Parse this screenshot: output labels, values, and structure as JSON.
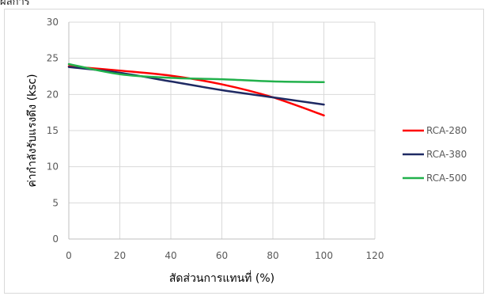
{
  "page": {
    "cropped_text_top": "ผลการ"
  },
  "chart_data": {
    "type": "line",
    "title": "",
    "xlabel": "สัดส่วนการแทนที่ (%)",
    "ylabel": "ค่ากำลังรับแรงดึง (ksc)",
    "xlim": [
      0,
      120
    ],
    "ylim": [
      0,
      30
    ],
    "x_ticks": [
      0,
      20,
      40,
      60,
      80,
      100,
      120
    ],
    "y_ticks": [
      0,
      5,
      10,
      15,
      20,
      25,
      30
    ],
    "grid": true,
    "legend_position": "right",
    "series": [
      {
        "name": "RCA-280",
        "color": "#ff0000",
        "x": [
          0,
          20,
          40,
          60,
          80,
          100
        ],
        "y": [
          23.9,
          23.3,
          22.6,
          21.4,
          19.6,
          17.1
        ]
      },
      {
        "name": "RCA-380",
        "color": "#1f2a63",
        "x": [
          0,
          20,
          40,
          60,
          80,
          100
        ],
        "y": [
          23.8,
          23.0,
          21.8,
          20.6,
          19.6,
          18.6
        ]
      },
      {
        "name": "RCA-500",
        "color": "#22b14c",
        "x": [
          0,
          20,
          40,
          60,
          80,
          100
        ],
        "y": [
          24.2,
          22.8,
          22.3,
          22.1,
          21.8,
          21.7
        ]
      }
    ]
  }
}
